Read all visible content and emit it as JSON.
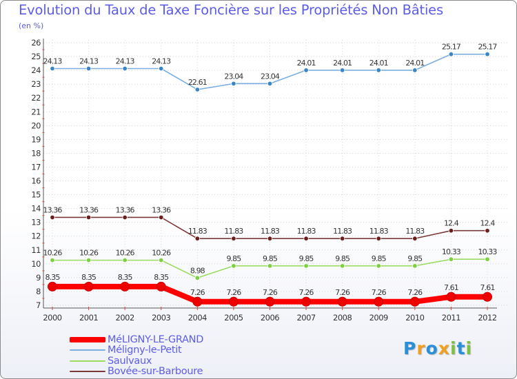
{
  "chart_data": {
    "type": "line",
    "title": "Evolution du Taux de Taxe Foncière sur les Propriétés Non Bâties",
    "subtitle": "(en %)",
    "xlabel": "",
    "ylabel": "(en %)",
    "ylim": [
      7,
      26
    ],
    "y_ticks": [
      "7",
      "8",
      "9",
      "10",
      "11",
      "12",
      "13",
      "14",
      "15",
      "16",
      "17",
      "18",
      "19",
      "20",
      "21",
      "22",
      "23",
      "24",
      "25",
      "26"
    ],
    "categories": [
      "2000",
      "2001",
      "2002",
      "2003",
      "2004",
      "2005",
      "2006",
      "2007",
      "2008",
      "2009",
      "2010",
      "2011",
      "2012"
    ],
    "series": [
      {
        "name": "MéLIGNY-LE-GRAND",
        "color": "#ff0000",
        "values": [
          8.35,
          8.35,
          8.35,
          8.35,
          7.26,
          7.26,
          7.26,
          7.26,
          7.26,
          7.26,
          7.26,
          7.61,
          7.61
        ],
        "labels": [
          "8.35",
          "8.35",
          "8.35",
          "8.35",
          "7.26",
          "7.26",
          "7.26",
          "7.26",
          "7.26",
          "7.26",
          "7.26",
          "7.61",
          "7.61"
        ]
      },
      {
        "name": "Méligny-le-Petit",
        "color": "#7aaede",
        "values": [
          24.13,
          24.13,
          24.13,
          24.13,
          22.61,
          23.04,
          23.04,
          24.01,
          24.01,
          24.01,
          24.01,
          25.17,
          25.17
        ],
        "labels": [
          "24.13",
          "24.13",
          "24.13",
          "24.13",
          "22.61",
          "23.04",
          "23.04",
          "24.01",
          "24.01",
          "24.01",
          "24.01",
          "25.17",
          "25.17"
        ]
      },
      {
        "name": "Saulvaux",
        "color": "#9adc62",
        "values": [
          10.26,
          10.26,
          10.26,
          10.26,
          8.98,
          9.85,
          9.85,
          9.85,
          9.85,
          9.85,
          9.85,
          10.33,
          10.33
        ],
        "labels": [
          "10.26",
          "10.26",
          "10.26",
          "10.26",
          "8.98",
          "9.85",
          "9.85",
          "9.85",
          "9.85",
          "9.85",
          "9.85",
          "10.33",
          "10.33"
        ]
      },
      {
        "name": "Bovée-sur-Barboure",
        "color": "#7a3838",
        "values": [
          13.36,
          13.36,
          13.36,
          13.36,
          11.83,
          11.83,
          11.83,
          11.83,
          11.83,
          11.83,
          11.83,
          12.4,
          12.4
        ],
        "labels": [
          "13.36",
          "13.36",
          "13.36",
          "13.36",
          "11.83",
          "11.83",
          "11.83",
          "11.83",
          "11.83",
          "11.83",
          "11.83",
          "12.4",
          "12.4"
        ]
      }
    ]
  },
  "brand": {
    "letters": [
      "P",
      "r",
      "o",
      "x",
      "i",
      "t",
      "i"
    ],
    "colors": [
      "#2a8fd8",
      "#f0a020",
      "#2a8fd8",
      "#f0a020",
      "#7cc242",
      "#2a8fd8",
      "#7cc242"
    ]
  }
}
